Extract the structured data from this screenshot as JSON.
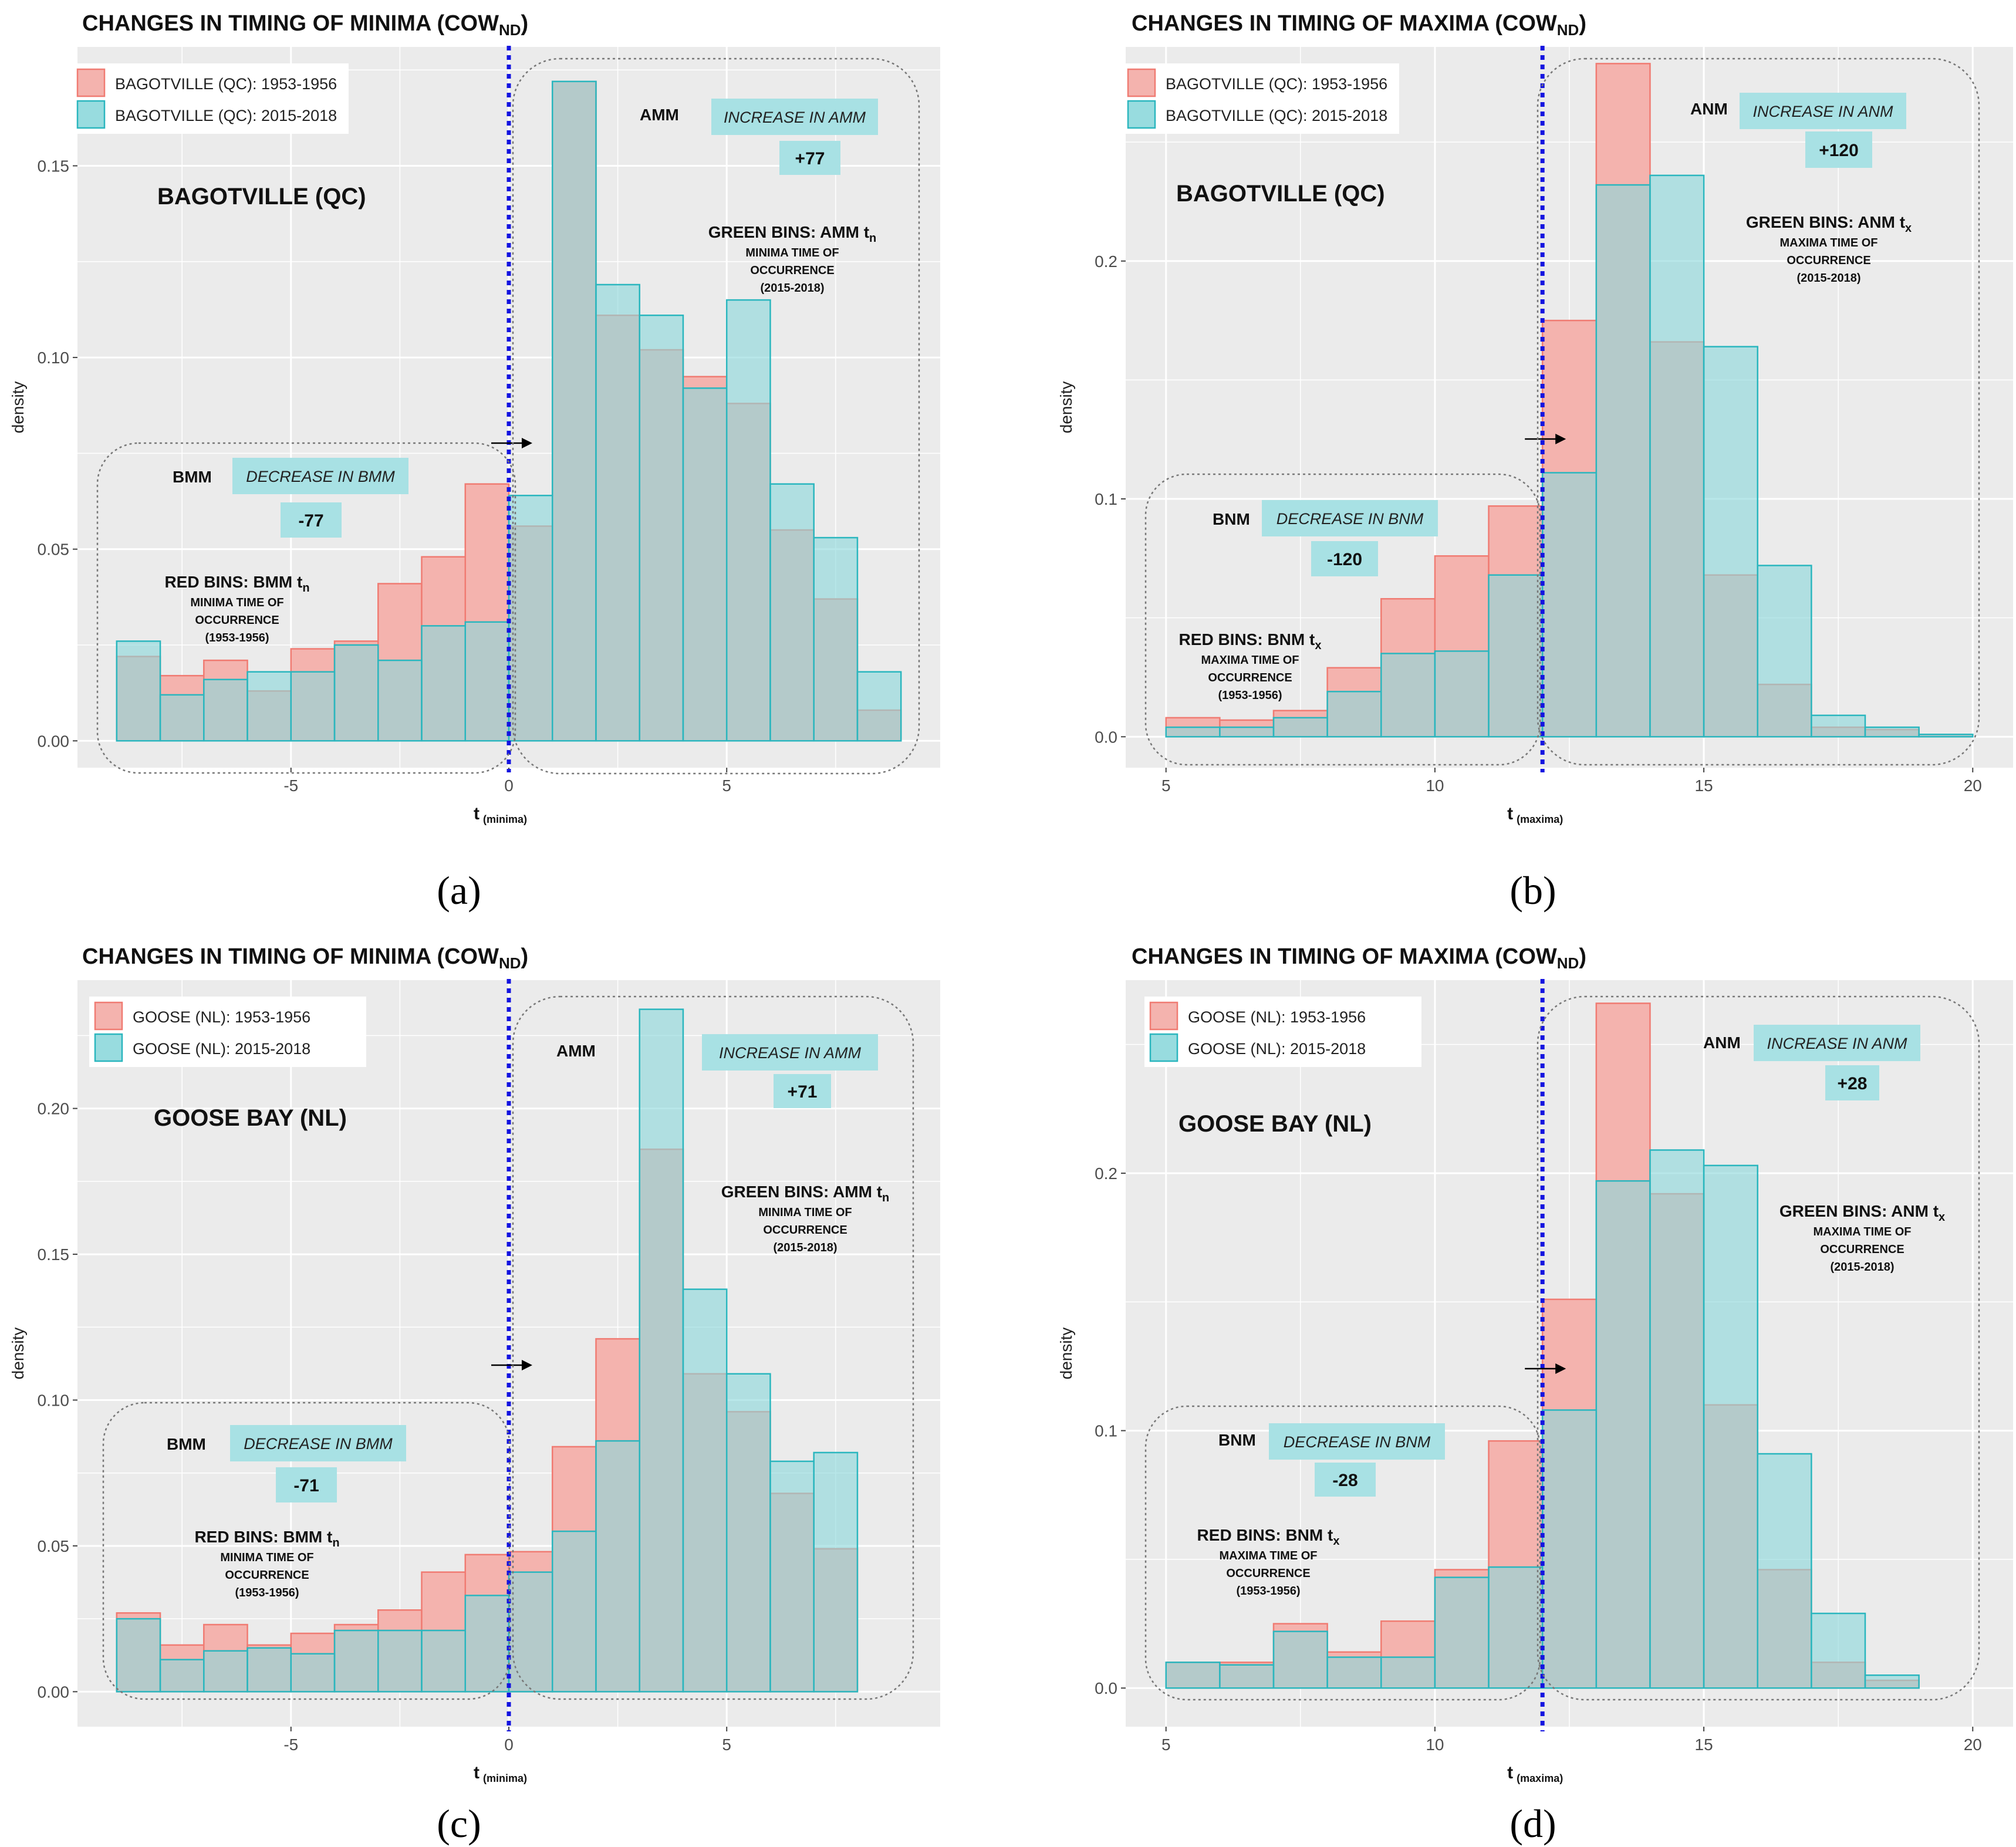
{
  "colors": {
    "panel_bg": "#ebebeb",
    "grid_major": "#ffffff",
    "red_fill": "#f4b3ae",
    "red_stroke": "#f07b72",
    "teal_fill": "#8dd8db",
    "teal_stroke": "#2ab6be",
    "badge_fill": "#a8e1e4",
    "threshold_line": "#1414e0",
    "box_stroke": "#777777"
  },
  "chart_data": [
    {
      "panel": "a",
      "type": "bar",
      "title_main": "CHANGES IN TIMING OF MINIMA (COW",
      "title_sub": "ND",
      "title_end": ")",
      "caption": "(a)",
      "station": "BAGOTVILLE (QC)",
      "ylabel": "density",
      "xlabel_main": "t",
      "xlabel_sub": "(minima)",
      "xlim": [
        -9.9,
        9.9
      ],
      "ylim": [
        -0.007,
        0.181
      ],
      "xticks": [
        -5,
        0,
        5
      ],
      "xtick_labels": [
        "-5",
        "0",
        "5"
      ],
      "yticks": [
        0,
        0.05,
        0.1,
        0.15
      ],
      "ytick_labels": [
        "0.00",
        "0.05",
        "0.10",
        "0.15"
      ],
      "threshold_x": 0,
      "bin_edges": [
        -9,
        -8,
        -7,
        -6,
        -5,
        -4,
        -3,
        -2,
        -1,
        0,
        1,
        2,
        3,
        4,
        5,
        6,
        7,
        8,
        9
      ],
      "series": [
        {
          "name": "BAGOTVILLE (QC): 1953-1956",
          "values": [
            0.022,
            0.017,
            0.021,
            0.013,
            0.024,
            0.026,
            0.041,
            0.048,
            0.067,
            0.056,
            0.172,
            0.111,
            0.102,
            0.095,
            0.088,
            0.055,
            0.037,
            0.008
          ]
        },
        {
          "name": "BAGOTVILLE (QC): 2015-2018",
          "values": [
            0.026,
            0.012,
            0.016,
            0.018,
            0.018,
            0.025,
            0.021,
            0.03,
            0.031,
            0.064,
            0.172,
            0.119,
            0.111,
            0.092,
            0.115,
            0.067,
            0.053,
            0.018
          ]
        }
      ],
      "before_label": "BMM",
      "before_badge": "DECREASE IN BMM",
      "before_value": "-77",
      "before_note_main": "RED BINS: BMM t",
      "before_note_sub": "n",
      "before_note_lines": [
        "MINIMA TIME OF",
        "OCCURRENCE",
        "(1953-1956)"
      ],
      "after_label": "AMM",
      "after_badge": "INCREASE IN AMM",
      "after_value": "+77",
      "after_note_main": "GREEN BINS: AMM t",
      "after_note_sub": "n",
      "after_note_lines": [
        "MINIMA TIME OF",
        "OCCURRENCE",
        "(2015-2018)"
      ]
    },
    {
      "panel": "b",
      "type": "bar",
      "title_main": "CHANGES IN TIMING OF MAXIMA (COW",
      "title_sub": "ND",
      "title_end": ")",
      "caption": "(b)",
      "station": "BAGOTVILLE (QC)",
      "ylabel": "density",
      "xlabel_main": "t",
      "xlabel_sub": "(maxima)",
      "xlim": [
        4.25,
        20.75
      ],
      "ylim": [
        -0.013,
        0.29
      ],
      "xticks": [
        5,
        10,
        15,
        20
      ],
      "xtick_labels": [
        "5",
        "10",
        "15",
        "20"
      ],
      "yticks": [
        0,
        0.1,
        0.2
      ],
      "ytick_labels": [
        "0.0",
        "0.1",
        "0.2"
      ],
      "threshold_x": 12,
      "bin_edges": [
        5,
        6,
        7,
        8,
        9,
        10,
        11,
        12,
        13,
        14,
        15,
        16,
        17,
        18,
        19,
        20
      ],
      "series": [
        {
          "name": "BAGOTVILLE (QC): 1953-1956",
          "values": [
            0.008,
            0.007,
            0.011,
            0.029,
            0.058,
            0.076,
            0.097,
            0.175,
            0.283,
            0.166,
            0.068,
            0.022,
            0.004,
            0.003,
            0.001
          ]
        },
        {
          "name": "BAGOTVILLE (QC): 2015-2018",
          "values": [
            0.004,
            0.004,
            0.008,
            0.019,
            0.035,
            0.036,
            0.068,
            0.111,
            0.232,
            0.236,
            0.164,
            0.072,
            0.009,
            0.004,
            0.001
          ]
        }
      ],
      "before_label": "BNM",
      "before_badge": "DECREASE IN BNM",
      "before_value": "-120",
      "before_note_main": "RED BINS: BNM t",
      "before_note_sub": "x",
      "before_note_lines": [
        "MAXIMA TIME OF",
        "OCCURRENCE",
        "(1953-1956)"
      ],
      "after_label": "ANM",
      "after_badge": "INCREASE IN ANM",
      "after_value": "+120",
      "after_note_main": "GREEN BINS: ANM t",
      "after_note_sub": "x",
      "after_note_lines": [
        "MAXIMA TIME OF",
        "OCCURRENCE",
        "(2015-2018)"
      ]
    },
    {
      "panel": "c",
      "type": "bar",
      "title_main": "CHANGES IN TIMING OF MINIMA (COW",
      "title_sub": "ND",
      "title_end": ")",
      "caption": "(c)",
      "station": "GOOSE BAY (NL)",
      "ylabel": "density",
      "xlabel_main": "t",
      "xlabel_sub": "(minima)",
      "xlim": [
        -9.9,
        9.9
      ],
      "ylim": [
        -0.012,
        0.244
      ],
      "xticks": [
        -5,
        0,
        5
      ],
      "xtick_labels": [
        "-5",
        "0",
        "5"
      ],
      "yticks": [
        0,
        0.05,
        0.1,
        0.15,
        0.2
      ],
      "ytick_labels": [
        "0.00",
        "0.05",
        "0.10",
        "0.15",
        "0.20"
      ],
      "threshold_x": 0,
      "bin_edges": [
        -9,
        -8,
        -7,
        -6,
        -5,
        -4,
        -3,
        -2,
        -1,
        0,
        1,
        2,
        3,
        4,
        5,
        6,
        7,
        8,
        9
      ],
      "series": [
        {
          "name": "GOOSE (NL): 1953-1956",
          "values": [
            0.027,
            0.016,
            0.023,
            0.016,
            0.02,
            0.023,
            0.028,
            0.041,
            0.047,
            0.048,
            0.084,
            0.121,
            0.186,
            0.109,
            0.096,
            0.068,
            0.049,
            0.0
          ]
        },
        {
          "name": "GOOSE (NL): 2015-2018",
          "values": [
            0.025,
            0.011,
            0.014,
            0.015,
            0.013,
            0.021,
            0.021,
            0.021,
            0.033,
            0.041,
            0.055,
            0.086,
            0.234,
            0.138,
            0.109,
            0.079,
            0.082,
            0.0
          ]
        }
      ],
      "before_label": "BMM",
      "before_badge": "DECREASE IN BMM",
      "before_value": "-71",
      "before_note_main": "RED BINS: BMM t",
      "before_note_sub": "n",
      "before_note_lines": [
        "MINIMA TIME OF",
        "OCCURRENCE",
        "(1953-1956)"
      ],
      "after_label": "AMM",
      "after_badge": "INCREASE IN AMM",
      "after_value": "+71",
      "after_note_main": "GREEN BINS: AMM t",
      "after_note_sub": "n",
      "after_note_lines": [
        "MINIMA TIME OF",
        "OCCURRENCE",
        "(2015-2018)"
      ]
    },
    {
      "panel": "d",
      "type": "bar",
      "title_main": "CHANGES IN TIMING OF MAXIMA (COW",
      "title_sub": "ND",
      "title_end": ")",
      "caption": "(d)",
      "station": "GOOSE BAY (NL)",
      "ylabel": "density",
      "xlabel_main": "t",
      "xlabel_sub": "(maxima)",
      "xlim": [
        4.25,
        20.75
      ],
      "ylim": [
        -0.015,
        0.275
      ],
      "xticks": [
        5,
        10,
        15,
        20
      ],
      "xtick_labels": [
        "5",
        "10",
        "15",
        "20"
      ],
      "yticks": [
        0,
        0.1,
        0.2
      ],
      "ytick_labels": [
        "0.0",
        "0.1",
        "0.2"
      ],
      "threshold_x": 12,
      "bin_edges": [
        5,
        6,
        7,
        8,
        9,
        10,
        11,
        12,
        13,
        14,
        15,
        16,
        17,
        18,
        19,
        20
      ],
      "series": [
        {
          "name": "GOOSE (NL): 1953-1956",
          "values": [
            0.01,
            0.01,
            0.025,
            0.014,
            0.026,
            0.046,
            0.096,
            0.151,
            0.266,
            0.192,
            0.11,
            0.046,
            0.01,
            0.003,
            0.0
          ]
        },
        {
          "name": "GOOSE (NL): 2015-2018",
          "values": [
            0.01,
            0.009,
            0.022,
            0.012,
            0.012,
            0.043,
            0.047,
            0.108,
            0.197,
            0.209,
            0.203,
            0.091,
            0.029,
            0.005,
            0.0
          ]
        }
      ],
      "before_label": "BNM",
      "before_badge": "DECREASE IN BNM",
      "before_value": "-28",
      "before_note_main": "RED BINS: BNM t",
      "before_note_sub": "x",
      "before_note_lines": [
        "MAXIMA TIME OF",
        "OCCURRENCE",
        "(1953-1956)"
      ],
      "after_label": "ANM",
      "after_badge": "INCREASE IN ANM",
      "after_value": "+28",
      "after_note_main": "GREEN BINS: ANM t",
      "after_note_sub": "x",
      "after_note_lines": [
        "MAXIMA TIME OF",
        "OCCURRENCE",
        "(2015-2018)"
      ]
    }
  ]
}
